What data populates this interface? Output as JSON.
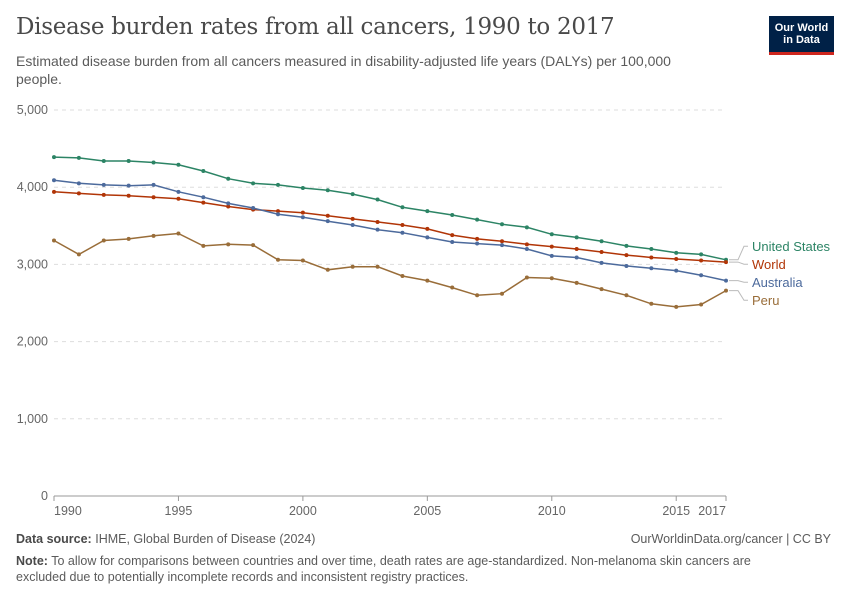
{
  "header": {
    "title": "Disease burden rates from all cancers, 1990 to 2017",
    "subtitle": "Estimated disease burden from all cancers measured in disability-adjusted life years (DALYs) per 100,000 people."
  },
  "logo": {
    "line1": "Our World",
    "line2": "in Data",
    "bg": "#002147",
    "accent": "#ce261e"
  },
  "footer": {
    "source_label": "Data source:",
    "source_text": "IHME, Global Burden of Disease (2024)",
    "credit": "OurWorldinData.org/cancer | CC BY",
    "note_label": "Note:",
    "note_text": "To allow for comparisons between countries and over time, death rates are age-standardized. Non-melanoma skin cancers are excluded due to potentially incomplete records and inconsistent registry practices."
  },
  "chart_data": {
    "type": "line",
    "x": [
      1990,
      1991,
      1992,
      1993,
      1994,
      1995,
      1996,
      1997,
      1998,
      1999,
      2000,
      2001,
      2002,
      2003,
      2004,
      2005,
      2006,
      2007,
      2008,
      2009,
      2010,
      2011,
      2012,
      2013,
      2014,
      2015,
      2016,
      2017
    ],
    "xlim": [
      1990,
      2017
    ],
    "ylim": [
      0,
      5000
    ],
    "xticks": [
      1990,
      1995,
      2000,
      2005,
      2010,
      2015,
      2017
    ],
    "xtick_labels": [
      "1990",
      "1995",
      "2000",
      "2005",
      "2010",
      "2015",
      "2017"
    ],
    "yticks": [
      0,
      1000,
      2000,
      3000,
      4000,
      5000
    ],
    "ytick_labels": [
      "0",
      "1,000",
      "2,000",
      "3,000",
      "4,000",
      "5,000"
    ],
    "grid": "horizontal dashed",
    "legend": "right, at line ends",
    "series": [
      {
        "name": "United States",
        "color": "#2c8465",
        "values": [
          4390,
          4380,
          4340,
          4340,
          4320,
          4290,
          4210,
          4110,
          4050,
          4030,
          3990,
          3960,
          3910,
          3840,
          3740,
          3690,
          3640,
          3580,
          3520,
          3480,
          3390,
          3350,
          3300,
          3240,
          3200,
          3150,
          3130,
          3060
        ]
      },
      {
        "name": "World",
        "color": "#b13507",
        "values": [
          3940,
          3920,
          3900,
          3890,
          3870,
          3850,
          3800,
          3750,
          3710,
          3690,
          3670,
          3630,
          3590,
          3550,
          3510,
          3460,
          3380,
          3330,
          3300,
          3260,
          3230,
          3200,
          3160,
          3120,
          3090,
          3070,
          3050,
          3030
        ]
      },
      {
        "name": "Australia",
        "color": "#4c6a9c",
        "values": [
          4090,
          4050,
          4030,
          4020,
          4030,
          3940,
          3870,
          3790,
          3730,
          3650,
          3610,
          3560,
          3510,
          3450,
          3410,
          3350,
          3290,
          3270,
          3250,
          3200,
          3110,
          3090,
          3020,
          2980,
          2950,
          2920,
          2860,
          2790
        ]
      },
      {
        "name": "Peru",
        "color": "#996d39",
        "values": [
          3310,
          3130,
          3310,
          3330,
          3370,
          3400,
          3240,
          3260,
          3250,
          3060,
          3050,
          2930,
          2970,
          2970,
          2850,
          2790,
          2700,
          2600,
          2620,
          2830,
          2820,
          2760,
          2680,
          2600,
          2490,
          2450,
          2480,
          2660
        ]
      }
    ]
  }
}
